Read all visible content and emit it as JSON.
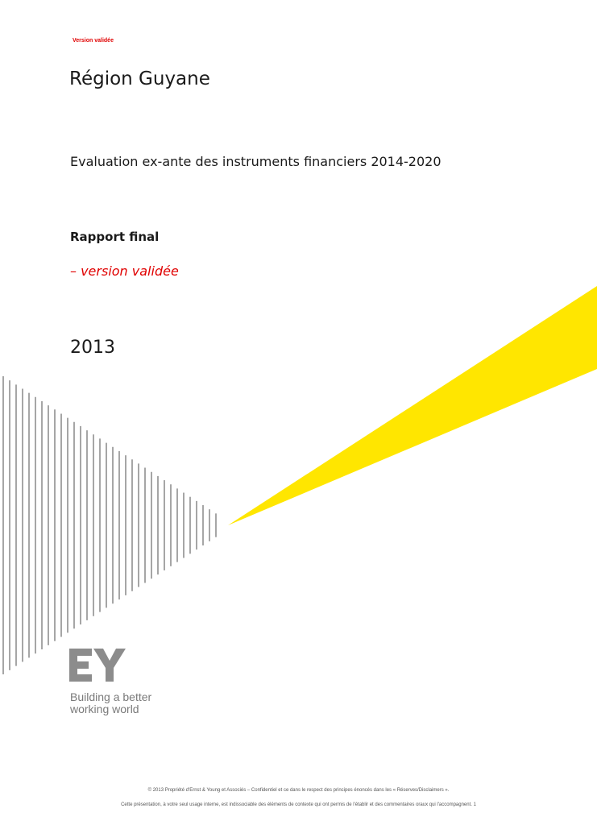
{
  "header": {
    "version_tag": "Version validée"
  },
  "cover": {
    "title": "Région Guyane",
    "subtitle": "Evaluation ex-ante des instruments financiers 2014-2020",
    "report_label": "Rapport final",
    "report_version": "– version validée",
    "year": "2013"
  },
  "logo": {
    "mark": "EY",
    "tagline_line1": "Building a better",
    "tagline_line2": "working world"
  },
  "footer": {
    "line1": "© 2013 Propriété d'Ernst & Young et Associés – Confidentiel et ce dans le respect des principes énoncés dans les « Réserves/Disclaimers ».",
    "line2": "Cette présentation, à votre seul usage interne, est indissociable des éléments de contexte qui ont permis de l'établir et des commentaires oraux qui l'accompagnent. 1"
  },
  "colors": {
    "accent_yellow": "#ffe600",
    "accent_red": "#e00000",
    "logo_grey": "#8c8c8c",
    "text_dark": "#1a1a1a"
  }
}
